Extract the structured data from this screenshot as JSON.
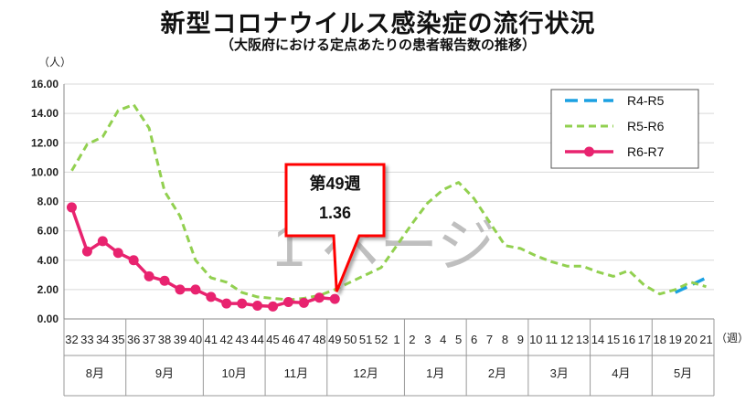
{
  "chart_data": {
    "type": "line",
    "title": "新型コロナウイルス感染症の流行状況",
    "subtitle": "（大阪府における定点あたりの患者報告数の推移）",
    "ylabel": "（人）",
    "xlabel": "（週）",
    "ylim": [
      0,
      16
    ],
    "yticks": [
      "0.00",
      "2.00",
      "4.00",
      "6.00",
      "8.00",
      "10.00",
      "12.00",
      "14.00",
      "16.00"
    ],
    "grid": true,
    "legend_position": "top-right",
    "categories": [
      "32",
      "33",
      "34",
      "35",
      "36",
      "37",
      "38",
      "39",
      "40",
      "41",
      "42",
      "43",
      "44",
      "45",
      "46",
      "47",
      "48",
      "49",
      "50",
      "51",
      "52",
      "1",
      "2",
      "3",
      "4",
      "5",
      "6",
      "7",
      "8",
      "9",
      "10",
      "11",
      "12",
      "13",
      "14",
      "15",
      "16",
      "17",
      "18",
      "19",
      "20",
      "21"
    ],
    "months": [
      {
        "label": "8月",
        "start": 0,
        "end": 4
      },
      {
        "label": "9月",
        "start": 4,
        "end": 9
      },
      {
        "label": "10月",
        "start": 9,
        "end": 13
      },
      {
        "label": "11月",
        "start": 13,
        "end": 17
      },
      {
        "label": "12月",
        "start": 17,
        "end": 22
      },
      {
        "label": "1月",
        "start": 22,
        "end": 26
      },
      {
        "label": "2月",
        "start": 26,
        "end": 30
      },
      {
        "label": "3月",
        "start": 30,
        "end": 34
      },
      {
        "label": "4月",
        "start": 34,
        "end": 38
      },
      {
        "label": "5月",
        "start": 38,
        "end": 42
      }
    ],
    "series": [
      {
        "name": "R4-R5",
        "color": "#1ba1e2",
        "style": "dash-long",
        "values": [
          null,
          null,
          null,
          null,
          null,
          null,
          null,
          null,
          null,
          null,
          null,
          null,
          null,
          null,
          null,
          null,
          null,
          null,
          null,
          null,
          null,
          null,
          null,
          null,
          null,
          null,
          null,
          null,
          null,
          null,
          null,
          null,
          null,
          null,
          null,
          null,
          null,
          null,
          null,
          1.8,
          2.3,
          2.8
        ]
      },
      {
        "name": "R5-R6",
        "color": "#92d050",
        "style": "dash-short",
        "values": [
          10.1,
          11.9,
          12.4,
          14.2,
          14.6,
          13.0,
          8.7,
          7.0,
          4.0,
          2.8,
          2.5,
          1.8,
          1.5,
          1.4,
          1.3,
          1.4,
          1.6,
          2.0,
          2.5,
          3.0,
          3.5,
          5.0,
          6.5,
          7.9,
          8.8,
          9.3,
          8.2,
          6.6,
          5.0,
          4.8,
          4.3,
          3.9,
          3.6,
          3.6,
          3.2,
          2.9,
          3.3,
          2.3,
          1.7,
          2.0,
          2.5,
          2.2
        ]
      },
      {
        "name": "R6-R7",
        "color": "#e8236f",
        "style": "solid-marker",
        "values": [
          7.6,
          4.6,
          5.3,
          4.5,
          4.0,
          2.9,
          2.6,
          2.0,
          2.0,
          1.5,
          1.05,
          1.05,
          0.9,
          0.85,
          1.15,
          1.1,
          1.45,
          1.36,
          null,
          null,
          null,
          null,
          null,
          null,
          null,
          null,
          null,
          null,
          null,
          null,
          null,
          null,
          null,
          null,
          null,
          null,
          null,
          null,
          null,
          null,
          null,
          null
        ]
      }
    ],
    "annotations": [
      {
        "line1": "第49週",
        "line2": "1.36",
        "category_index": 17
      },
      {
        "text": "1 ページ"
      }
    ]
  }
}
